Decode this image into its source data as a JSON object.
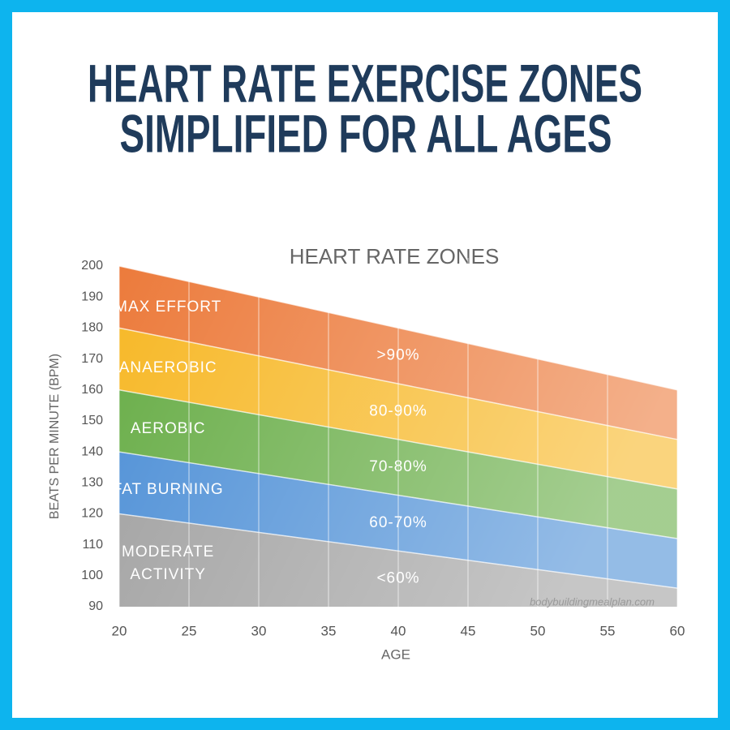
{
  "page_title": [
    "HEART RATE EXERCISE ZONES",
    "SIMPLIFIED FOR ALL AGES"
  ],
  "chart_data": {
    "type": "area",
    "title": "HEART RATE ZONES",
    "x_label": "AGE",
    "y_label": "BEATS PER MINUTE (BPM)",
    "watermark": "bodybuildingmealplan.com",
    "x": [
      20,
      60
    ],
    "xlim": [
      20,
      60
    ],
    "xticks": [
      20,
      25,
      30,
      35,
      40,
      45,
      50,
      55,
      60
    ],
    "ylim": [
      90,
      200
    ],
    "yticks": [
      90,
      100,
      110,
      120,
      130,
      140,
      150,
      160,
      170,
      180,
      190,
      200
    ],
    "grid": "x",
    "series": [
      {
        "name": "MAX EFFORT",
        "zone": ">90%",
        "color": "#ec7b3c",
        "values": [
          200,
          160
        ]
      },
      {
        "name": "ANAEROBIC",
        "zone": "80-90%",
        "color": "#f7b827",
        "values": [
          180,
          144
        ]
      },
      {
        "name": "AEROBIC",
        "zone": "70-80%",
        "color": "#68ad47",
        "values": [
          160,
          128
        ]
      },
      {
        "name": "FAT BURNING",
        "zone": "60-70%",
        "color": "#4d8fd6",
        "values": [
          140,
          112
        ]
      },
      {
        "name": "MODERATE ACTIVITY",
        "zone": "<60%",
        "color": "#a0a0a0",
        "values": [
          120,
          96
        ]
      }
    ]
  }
}
